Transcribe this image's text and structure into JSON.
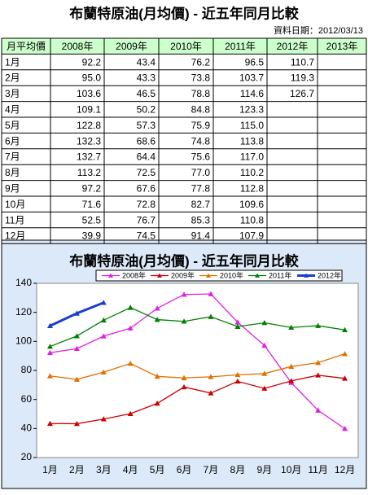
{
  "table": {
    "title": "布蘭特原油(月均價) - 近五年同月比較",
    "date": "資料日期：2012/03/13",
    "header": [
      "月平均價",
      "2008年",
      "2009年",
      "2010年",
      "2011年",
      "2012年",
      "2013年"
    ],
    "rows": [
      [
        "1月",
        "92.2",
        "43.4",
        "76.2",
        "96.5",
        "110.7",
        null
      ],
      [
        "2月",
        "95.0",
        "43.3",
        "73.8",
        "103.7",
        "119.3",
        null
      ],
      [
        "3月",
        "103.6",
        "46.5",
        "78.8",
        "114.6",
        "126.7",
        null
      ],
      [
        "4月",
        "109.1",
        "50.2",
        "84.8",
        "123.3",
        null,
        null
      ],
      [
        "5月",
        "122.8",
        "57.3",
        "75.9",
        "115.0",
        null,
        null
      ],
      [
        "6月",
        "132.3",
        "68.6",
        "74.8",
        "113.8",
        null,
        null
      ],
      [
        "7月",
        "132.7",
        "64.4",
        "75.6",
        "117.0",
        null,
        null
      ],
      [
        "8月",
        "113.2",
        "72.5",
        "77.0",
        "110.2",
        null,
        null
      ],
      [
        "9月",
        "97.2",
        "67.6",
        "77.8",
        "112.8",
        null,
        null
      ],
      [
        "10月",
        "71.6",
        "72.8",
        "82.7",
        "109.6",
        null,
        null
      ],
      [
        "11月",
        "52.5",
        "76.7",
        "85.3",
        "110.8",
        null,
        null
      ],
      [
        "12月",
        "39.9",
        "74.5",
        "91.4",
        "107.9",
        null,
        null
      ]
    ]
  },
  "chart_data": {
    "type": "line",
    "title": "布蘭特原油(月均價) - 近五年同月比較",
    "categories": [
      "1月",
      "2月",
      "3月",
      "4月",
      "5月",
      "6月",
      "7月",
      "8月",
      "9月",
      "10月",
      "11月",
      "12月"
    ],
    "series": [
      {
        "name": "2008年",
        "color": "#e020e0",
        "values": [
          92.2,
          95.0,
          103.6,
          109.1,
          122.8,
          132.3,
          132.7,
          113.2,
          97.2,
          71.6,
          52.5,
          39.9
        ]
      },
      {
        "name": "2009年",
        "color": "#cc0000",
        "values": [
          43.4,
          43.3,
          46.5,
          50.2,
          57.3,
          68.6,
          64.4,
          72.5,
          67.6,
          72.8,
          76.7,
          74.5
        ]
      },
      {
        "name": "2010年",
        "color": "#e07000",
        "values": [
          76.2,
          73.8,
          78.8,
          84.8,
          75.9,
          74.8,
          75.6,
          77.0,
          77.8,
          82.7,
          85.3,
          91.4
        ]
      },
      {
        "name": "2011年",
        "color": "#008000",
        "values": [
          96.5,
          103.7,
          114.6,
          123.3,
          115.0,
          113.8,
          117.0,
          110.2,
          112.8,
          109.6,
          110.8,
          107.9
        ]
      },
      {
        "name": "2012年",
        "color": "#1a3fd0",
        "values": [
          110.7,
          119.3,
          126.7,
          null,
          null,
          null,
          null,
          null,
          null,
          null,
          null,
          null
        ]
      }
    ],
    "ylim": [
      20,
      140
    ],
    "yticks": [
      20,
      40,
      60,
      80,
      100,
      120,
      140
    ],
    "grid": false
  }
}
